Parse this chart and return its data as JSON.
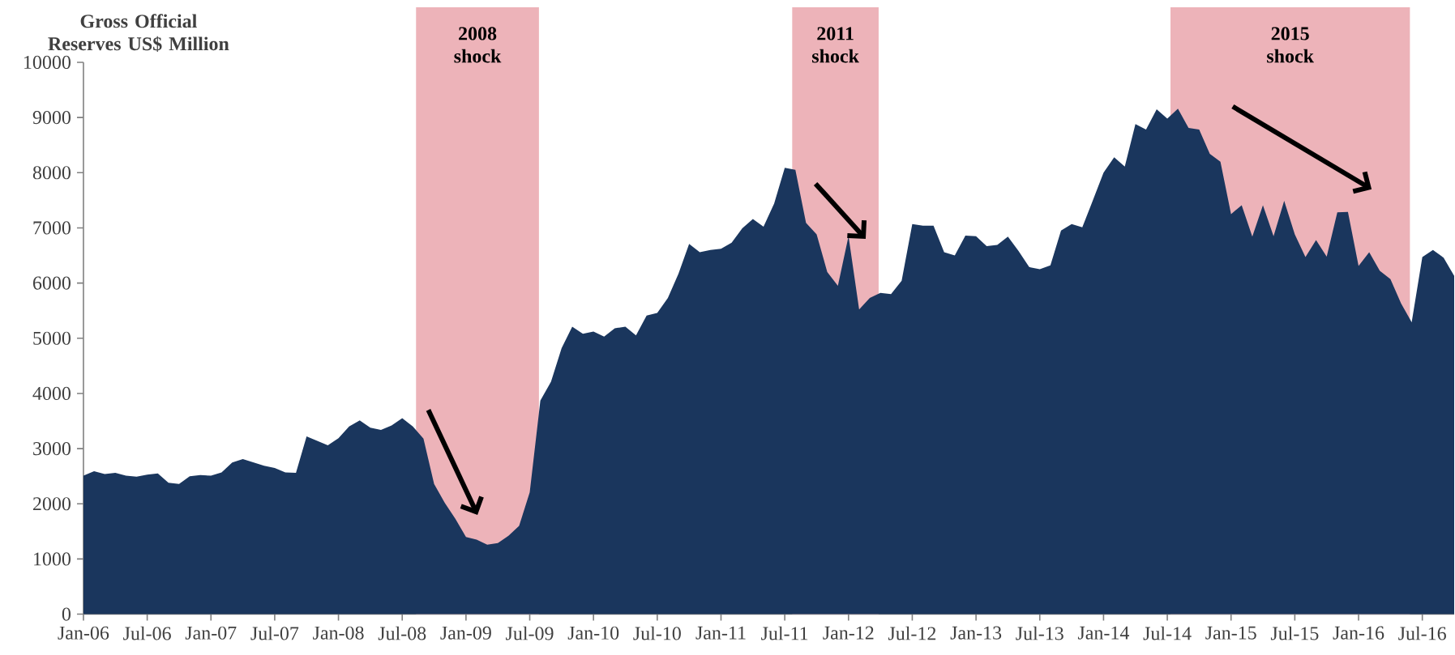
{
  "chart_data": {
    "type": "area",
    "ylabel": "Gross Official Reserves US$ Million",
    "color": "#1a365d",
    "x": [
      "2006-01",
      "2006-02",
      "2006-03",
      "2006-04",
      "2006-05",
      "2006-06",
      "2006-07",
      "2006-08",
      "2006-09",
      "2006-10",
      "2006-11",
      "2006-12",
      "2007-01",
      "2007-02",
      "2007-03",
      "2007-04",
      "2007-05",
      "2007-06",
      "2007-07",
      "2007-08",
      "2007-09",
      "2007-10",
      "2007-11",
      "2007-12",
      "2008-01",
      "2008-02",
      "2008-03",
      "2008-04",
      "2008-05",
      "2008-06",
      "2008-07",
      "2008-08",
      "2008-09",
      "2008-10",
      "2008-11",
      "2008-12",
      "2009-01",
      "2009-02",
      "2009-03",
      "2009-04",
      "2009-05",
      "2009-06",
      "2009-07",
      "2009-08",
      "2009-09",
      "2009-10",
      "2009-11",
      "2009-12",
      "2010-01",
      "2010-02",
      "2010-03",
      "2010-04",
      "2010-05",
      "2010-06",
      "2010-07",
      "2010-08",
      "2010-09",
      "2010-10",
      "2010-11",
      "2010-12",
      "2011-01",
      "2011-02",
      "2011-03",
      "2011-04",
      "2011-05",
      "2011-06",
      "2011-07",
      "2011-08",
      "2011-09",
      "2011-10",
      "2011-11",
      "2011-12",
      "2012-01",
      "2012-02",
      "2012-03",
      "2012-04",
      "2012-05",
      "2012-06",
      "2012-07",
      "2012-08",
      "2012-09",
      "2012-10",
      "2012-11",
      "2012-12",
      "2013-01",
      "2013-02",
      "2013-03",
      "2013-04",
      "2013-05",
      "2013-06",
      "2013-07",
      "2013-08",
      "2013-09",
      "2013-10",
      "2013-11",
      "2013-12",
      "2014-01",
      "2014-02",
      "2014-03",
      "2014-04",
      "2014-05",
      "2014-06",
      "2014-07",
      "2014-08",
      "2014-09",
      "2014-10",
      "2014-11",
      "2014-12",
      "2015-01",
      "2015-02",
      "2015-03",
      "2015-04",
      "2015-05",
      "2015-06",
      "2015-07",
      "2015-08",
      "2015-09",
      "2015-10",
      "2015-11",
      "2015-12",
      "2016-01",
      "2016-02",
      "2016-03",
      "2016-04",
      "2016-05",
      "2016-06",
      "2016-07",
      "2016-08",
      "2016-09",
      "2016-10"
    ],
    "values": [
      2510,
      2590,
      2540,
      2560,
      2510,
      2490,
      2530,
      2550,
      2380,
      2360,
      2500,
      2520,
      2510,
      2570,
      2750,
      2810,
      2750,
      2690,
      2650,
      2570,
      2560,
      3220,
      3140,
      3060,
      3190,
      3400,
      3510,
      3380,
      3340,
      3420,
      3550,
      3400,
      3180,
      2360,
      2020,
      1730,
      1400,
      1350,
      1260,
      1290,
      1420,
      1600,
      2210,
      3870,
      4210,
      4820,
      5210,
      5080,
      5120,
      5030,
      5180,
      5210,
      5050,
      5410,
      5460,
      5730,
      6170,
      6710,
      6560,
      6600,
      6620,
      6730,
      6990,
      7160,
      7020,
      7440,
      8090,
      8050,
      7090,
      6880,
      6200,
      5950,
      6850,
      5520,
      5730,
      5820,
      5800,
      6040,
      7070,
      7040,
      7040,
      6560,
      6500,
      6860,
      6850,
      6670,
      6690,
      6840,
      6580,
      6290,
      6250,
      6320,
      6950,
      7070,
      7010,
      7500,
      8000,
      8280,
      8110,
      8880,
      8780,
      9150,
      8980,
      9160,
      8810,
      8780,
      8340,
      8200,
      7250,
      7410,
      6840,
      7410,
      6850,
      7490,
      6880,
      6470,
      6780,
      6480,
      7280,
      7290,
      6310,
      6560,
      6220,
      6070,
      5630,
      5290,
      6470,
      6600,
      6460,
      6130
    ],
    "xlim": [
      "2006-01",
      "2016-10"
    ],
    "ylim": [
      0,
      10000
    ],
    "yticks": [
      0,
      1000,
      2000,
      3000,
      4000,
      5000,
      6000,
      7000,
      8000,
      9000,
      10000
    ],
    "xticks": [
      {
        "value": "2006-01",
        "label": "Jan-06"
      },
      {
        "value": "2006-07",
        "label": "Jul-06"
      },
      {
        "value": "2007-01",
        "label": "Jan-07"
      },
      {
        "value": "2007-07",
        "label": "Jul-07"
      },
      {
        "value": "2008-01",
        "label": "Jan-08"
      },
      {
        "value": "2008-07",
        "label": "Jul-08"
      },
      {
        "value": "2009-01",
        "label": "Jan-09"
      },
      {
        "value": "2009-07",
        "label": "Jul-09"
      },
      {
        "value": "2010-01",
        "label": "Jan-10"
      },
      {
        "value": "2010-07",
        "label": "Jul-10"
      },
      {
        "value": "2011-01",
        "label": "Jan-11"
      },
      {
        "value": "2011-07",
        "label": "Jul-11"
      },
      {
        "value": "2012-01",
        "label": "Jan-12"
      },
      {
        "value": "2012-07",
        "label": "Jul-12"
      },
      {
        "value": "2013-01",
        "label": "Jan-13"
      },
      {
        "value": "2013-07",
        "label": "Jul-13"
      },
      {
        "value": "2014-01",
        "label": "Jan-14"
      },
      {
        "value": "2014-07",
        "label": "Jul-14"
      },
      {
        "value": "2015-01",
        "label": "Jan-15"
      },
      {
        "value": "2015-07",
        "label": "Jul-15"
      },
      {
        "value": "2016-01",
        "label": "Jan-16"
      },
      {
        "value": "2016-07",
        "label": "Jul-16"
      }
    ],
    "bands": [
      {
        "axis": "x",
        "from": "2008-08-10",
        "to": "2009-07-27",
        "label": "2008 shock",
        "color": "#edb3b9"
      },
      {
        "axis": "x",
        "from": "2011-07-22",
        "to": "2012-03-26",
        "label": "2011 shock",
        "color": "#edb3b9"
      },
      {
        "axis": "x",
        "from": "2014-07-10",
        "to": "2016-05-26",
        "label": "2015 shock",
        "color": "#edb3b9"
      }
    ]
  }
}
